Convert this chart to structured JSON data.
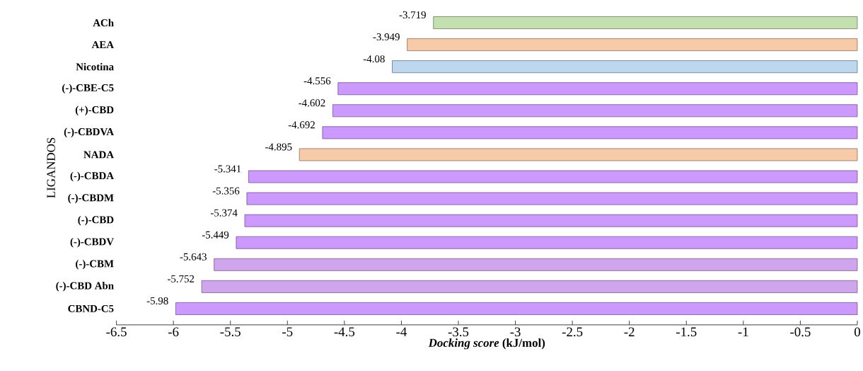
{
  "chart_data": {
    "type": "bar",
    "orientation": "horizontal",
    "xlabel": "*Docking score* (kJ/mol)",
    "ylabel": "LIGANDOS",
    "categories": [
      "ACh",
      "AEA",
      "Nicotina",
      "(-)-CBE-C5",
      "(+)-CBD",
      "(-)-CBDVA",
      "NADA",
      "(-)-CBDA",
      "(-)-CBDM",
      "(-)-CBD",
      "(-)-CBDV",
      "(-)-CBM",
      "(-)-CBD Abn",
      "CBND-C5"
    ],
    "values": [
      -3.719,
      -3.949,
      -4.08,
      -4.556,
      -4.602,
      -4.692,
      -4.895,
      -5.341,
      -5.356,
      -5.374,
      -5.449,
      -5.643,
      -5.752,
      -5.98
    ],
    "colors": [
      "#c4dfb0",
      "#f7caa9",
      "#bdd7ee",
      "#cc99ff",
      "#cc99ff",
      "#cc99ff",
      "#f7caa9",
      "#cc99ff",
      "#cc99ff",
      "#cc99ff",
      "#cc99ff",
      "#cfa6ee",
      "#cfa6ee",
      "#cc99ff"
    ],
    "xlim": [
      -6.5,
      0
    ],
    "xticks": [
      -6.5,
      -6,
      -5.5,
      -5,
      -4.5,
      -4,
      -3.5,
      -3,
      -2.5,
      -2,
      -1.5,
      -1,
      -0.5,
      0
    ],
    "data_labels": true
  }
}
